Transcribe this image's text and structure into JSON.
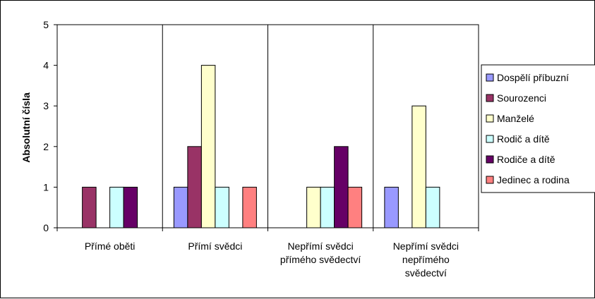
{
  "chart_data": {
    "type": "bar",
    "title": "",
    "xlabel": "",
    "ylabel": "Absolutní čísla",
    "ylim": [
      0,
      5
    ],
    "yticks": [
      0,
      1,
      2,
      3,
      4,
      5
    ],
    "grid": "vertical separators between categories",
    "legend_position": "right",
    "categories": [
      [
        "Přímé oběti"
      ],
      [
        "Přímí svědci"
      ],
      [
        "Nepřímí svědci",
        "přímého svědectví"
      ],
      [
        "Nepřímí svědci",
        "nepřímého",
        "svědectví"
      ]
    ],
    "series": [
      {
        "name": "Dospělí příbuzní",
        "color": "#9999ff",
        "values": [
          0,
          1,
          0,
          1
        ]
      },
      {
        "name": "Sourozenci",
        "color": "#993366",
        "values": [
          1,
          2,
          0,
          0
        ]
      },
      {
        "name": "Manželé",
        "color": "#ffffcc",
        "values": [
          0,
          4,
          1,
          3
        ]
      },
      {
        "name": "Rodič a dítě",
        "color": "#ccffff",
        "values": [
          1,
          1,
          1,
          1
        ]
      },
      {
        "name": "Rodiče a dítě",
        "color": "#660066",
        "values": [
          1,
          0,
          2,
          0
        ]
      },
      {
        "name": "Jedinec a rodina",
        "color": "#ff8080",
        "values": [
          0,
          1,
          1,
          0
        ]
      }
    ]
  }
}
